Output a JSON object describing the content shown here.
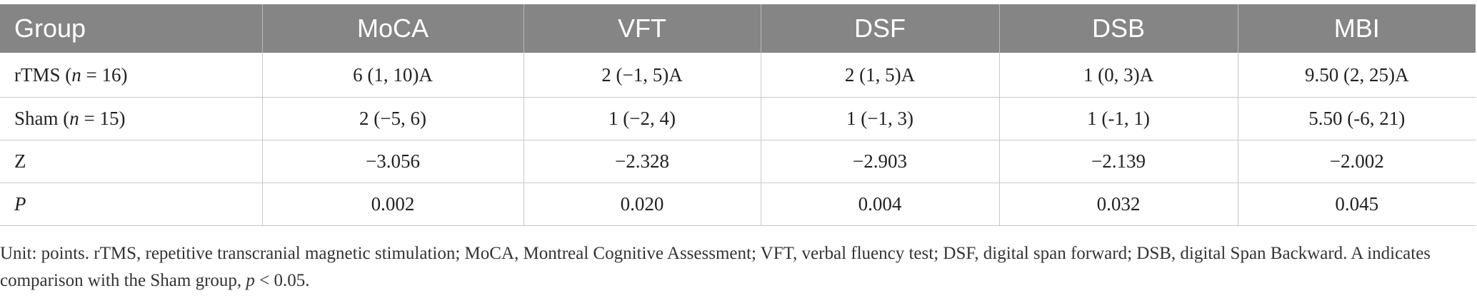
{
  "table": {
    "headers": [
      "Group",
      "MoCA",
      "VFT",
      "DSF",
      "DSB",
      "MBI"
    ],
    "rows": [
      {
        "group_prefix": "rTMS (",
        "group_n": "n",
        "group_suffix": " = 16)",
        "cells": [
          "6 (1, 10)A",
          "2 (−1, 5)A",
          "2 (1, 5)A",
          "1 (0, 3)A",
          "9.50 (2, 25)A"
        ]
      },
      {
        "group_prefix": "Sham (",
        "group_n": "n",
        "group_suffix": " = 15)",
        "cells": [
          "2 (−5, 6)",
          "1 (−2, 4)",
          "1 (−1, 3)",
          "1 (-1, 1)",
          "5.50 (-6, 21)"
        ]
      },
      {
        "group_label": "Z",
        "cells": [
          "−3.056",
          "−2.328",
          "−2.903",
          "−2.139",
          "−2.002"
        ]
      },
      {
        "group_label": "P",
        "cells": [
          "0.002",
          "0.020",
          "0.004",
          "0.032",
          "0.045"
        ]
      }
    ]
  },
  "footnote": {
    "text_main": "Unit: points. rTMS, repetitive transcranial magnetic stimulation; MoCA, Montreal Cognitive Assessment; VFT, verbal fluency test; DSF, digital span forward; DSB, digital Span Backward. A indicates comparison with the Sham group, ",
    "p_symbol": "p",
    "text_end": " < 0.05."
  }
}
